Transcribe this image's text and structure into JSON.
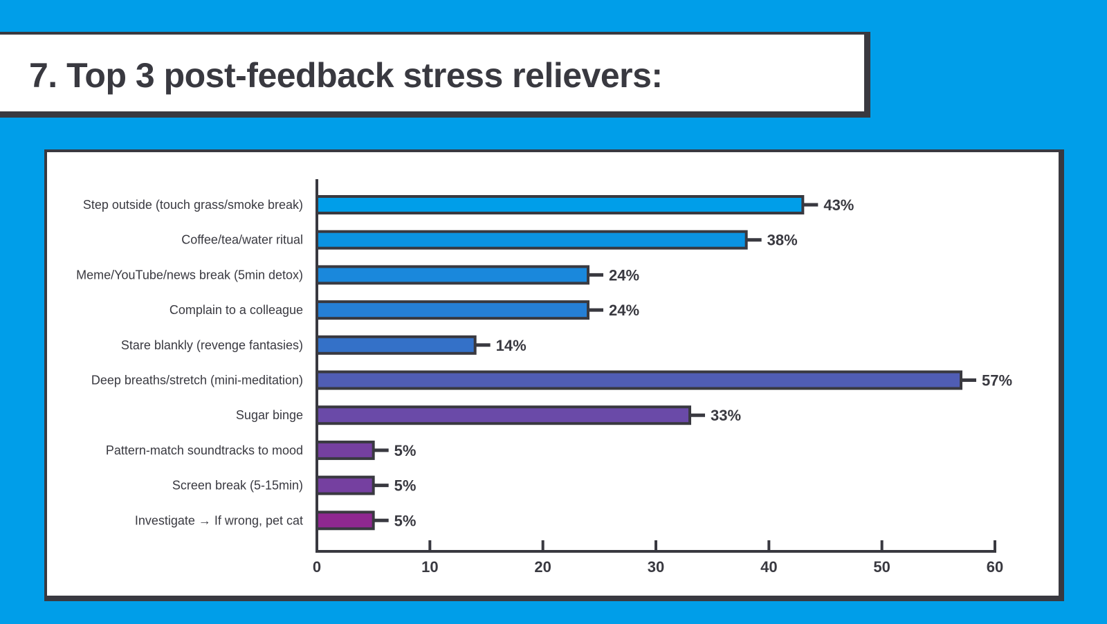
{
  "title": "7. Top 3 post-feedback stress relievers:",
  "colors": {
    "background": "#009ee9",
    "ink": "#393940",
    "panel": "#ffffff"
  },
  "chart_data": {
    "type": "bar",
    "orientation": "horizontal",
    "title": "7. Top 3 post-feedback stress relievers:",
    "xlabel": "",
    "ylabel": "",
    "xlim": [
      0,
      60
    ],
    "xticks": [
      0,
      10,
      20,
      30,
      40,
      50,
      60
    ],
    "grid": false,
    "categories": [
      "Step outside (touch grass/smoke break)",
      "Coffee/tea/water ritual",
      "Meme/YouTube/news break (5min detox)",
      "Complain to a colleague",
      "Stare blankly (revenge fantasies)",
      "Deep breaths/stretch (mini-meditation)",
      "Sugar binge",
      "Pattern-match soundtracks to mood",
      "Screen break (5-15min)",
      "Investigate → If wrong, pet cat"
    ],
    "values": [
      43,
      38,
      24,
      24,
      14,
      57,
      33,
      5,
      5,
      5
    ],
    "data_labels": [
      "43%",
      "38%",
      "24%",
      "24%",
      "14%",
      "57%",
      "33%",
      "5%",
      "5%",
      "5%"
    ],
    "bar_colors": [
      "#009ee9",
      "#0b93e2",
      "#1a88dc",
      "#257fd6",
      "#3471c8",
      "#505db5",
      "#6a4aa8",
      "#7540a0",
      "#7540a0",
      "#8f2890"
    ]
  }
}
